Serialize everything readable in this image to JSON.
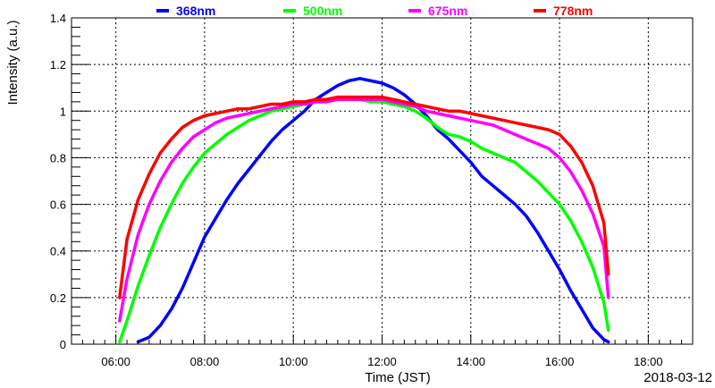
{
  "chart_data": {
    "type": "line",
    "xlabel": "Time (JST)",
    "ylabel": "Intensity (a.u.)",
    "date_label": "2018-03-12",
    "xlim": [
      "05:00",
      "19:00"
    ],
    "ylim": [
      0,
      1.4
    ],
    "x_ticks": [
      "06:00",
      "08:00",
      "10:00",
      "12:00",
      "14:00",
      "16:00",
      "18:00"
    ],
    "y_ticks": [
      "0",
      "0.2",
      "0.4",
      "0.6",
      "0.8",
      "1",
      "1.2",
      "1.4"
    ],
    "y_tick_values": [
      0,
      0.2,
      0.4,
      0.6,
      0.8,
      1.0,
      1.2,
      1.4
    ],
    "grid": true,
    "legend_position": "top",
    "series": [
      {
        "name": "368nm",
        "color": "#0000ff",
        "x": [
          "06:30",
          "06:45",
          "07:00",
          "07:15",
          "07:30",
          "07:45",
          "08:00",
          "08:15",
          "08:30",
          "08:45",
          "09:00",
          "09:15",
          "09:30",
          "09:45",
          "10:00",
          "10:15",
          "10:30",
          "10:45",
          "11:00",
          "11:15",
          "11:30",
          "11:45",
          "12:00",
          "12:15",
          "12:30",
          "12:45",
          "13:00",
          "13:15",
          "13:30",
          "13:45",
          "14:00",
          "14:15",
          "14:30",
          "14:45",
          "15:00",
          "15:15",
          "15:30",
          "15:45",
          "16:00",
          "16:15",
          "16:30",
          "16:45",
          "17:00",
          "17:06"
        ],
        "values": [
          0.01,
          0.03,
          0.08,
          0.15,
          0.24,
          0.35,
          0.46,
          0.54,
          0.62,
          0.69,
          0.75,
          0.81,
          0.87,
          0.92,
          0.96,
          1.0,
          1.05,
          1.08,
          1.11,
          1.13,
          1.14,
          1.13,
          1.12,
          1.1,
          1.07,
          1.03,
          0.98,
          0.92,
          0.88,
          0.83,
          0.78,
          0.72,
          0.68,
          0.64,
          0.6,
          0.55,
          0.48,
          0.4,
          0.32,
          0.23,
          0.15,
          0.07,
          0.02,
          0.01
        ]
      },
      {
        "name": "500nm",
        "color": "#00ff00",
        "x": [
          "06:05",
          "06:15",
          "06:30",
          "06:45",
          "07:00",
          "07:15",
          "07:30",
          "07:45",
          "08:00",
          "08:15",
          "08:30",
          "08:45",
          "09:00",
          "09:15",
          "09:30",
          "09:45",
          "10:00",
          "10:15",
          "10:30",
          "10:45",
          "11:00",
          "11:15",
          "11:30",
          "11:45",
          "12:00",
          "12:15",
          "12:30",
          "12:45",
          "13:00",
          "13:15",
          "13:30",
          "13:45",
          "14:00",
          "14:15",
          "14:30",
          "14:45",
          "15:00",
          "15:15",
          "15:30",
          "15:45",
          "16:00",
          "16:15",
          "16:30",
          "16:45",
          "17:00",
          "17:06"
        ],
        "values": [
          0.01,
          0.1,
          0.25,
          0.38,
          0.5,
          0.6,
          0.69,
          0.76,
          0.82,
          0.86,
          0.9,
          0.93,
          0.96,
          0.98,
          1.0,
          1.01,
          1.02,
          1.03,
          1.04,
          1.04,
          1.05,
          1.05,
          1.05,
          1.04,
          1.04,
          1.03,
          1.02,
          1.0,
          0.97,
          0.93,
          0.9,
          0.89,
          0.87,
          0.84,
          0.82,
          0.8,
          0.78,
          0.74,
          0.7,
          0.65,
          0.6,
          0.53,
          0.44,
          0.33,
          0.18,
          0.06
        ]
      },
      {
        "name": "675nm",
        "color": "#ff00ff",
        "x": [
          "06:05",
          "06:15",
          "06:30",
          "06:45",
          "07:00",
          "07:15",
          "07:30",
          "07:45",
          "08:00",
          "08:15",
          "08:30",
          "08:45",
          "09:00",
          "09:15",
          "09:30",
          "09:45",
          "10:00",
          "10:15",
          "10:30",
          "10:45",
          "11:00",
          "11:15",
          "11:30",
          "11:45",
          "12:00",
          "12:15",
          "12:30",
          "12:45",
          "13:00",
          "13:15",
          "13:30",
          "13:45",
          "14:00",
          "14:15",
          "14:30",
          "14:45",
          "15:00",
          "15:15",
          "15:30",
          "15:45",
          "16:00",
          "16:15",
          "16:30",
          "16:45",
          "17:00",
          "17:06"
        ],
        "values": [
          0.1,
          0.28,
          0.47,
          0.6,
          0.7,
          0.78,
          0.84,
          0.89,
          0.92,
          0.95,
          0.97,
          0.98,
          0.99,
          1.0,
          1.01,
          1.02,
          1.03,
          1.03,
          1.04,
          1.04,
          1.05,
          1.05,
          1.05,
          1.05,
          1.05,
          1.04,
          1.03,
          1.02,
          1.0,
          0.99,
          0.98,
          0.97,
          0.96,
          0.95,
          0.94,
          0.92,
          0.9,
          0.88,
          0.86,
          0.84,
          0.8,
          0.74,
          0.66,
          0.56,
          0.42,
          0.2
        ]
      },
      {
        "name": "778nm",
        "color": "#ff0000",
        "x": [
          "06:05",
          "06:15",
          "06:30",
          "06:45",
          "07:00",
          "07:15",
          "07:30",
          "07:45",
          "08:00",
          "08:15",
          "08:30",
          "08:45",
          "09:00",
          "09:15",
          "09:30",
          "09:45",
          "10:00",
          "10:15",
          "10:30",
          "10:45",
          "11:00",
          "11:15",
          "11:30",
          "11:45",
          "12:00",
          "12:15",
          "12:30",
          "12:45",
          "13:00",
          "13:15",
          "13:30",
          "13:45",
          "14:00",
          "14:15",
          "14:30",
          "14:45",
          "15:00",
          "15:15",
          "15:30",
          "15:45",
          "16:00",
          "16:15",
          "16:30",
          "16:45",
          "17:00",
          "17:06"
        ],
        "values": [
          0.2,
          0.45,
          0.62,
          0.73,
          0.82,
          0.88,
          0.93,
          0.96,
          0.98,
          0.99,
          1.0,
          1.01,
          1.01,
          1.02,
          1.03,
          1.03,
          1.04,
          1.04,
          1.05,
          1.05,
          1.06,
          1.06,
          1.06,
          1.06,
          1.06,
          1.05,
          1.04,
          1.03,
          1.02,
          1.01,
          1.0,
          1.0,
          0.99,
          0.98,
          0.97,
          0.96,
          0.95,
          0.94,
          0.93,
          0.92,
          0.9,
          0.85,
          0.78,
          0.68,
          0.52,
          0.3
        ]
      }
    ]
  }
}
